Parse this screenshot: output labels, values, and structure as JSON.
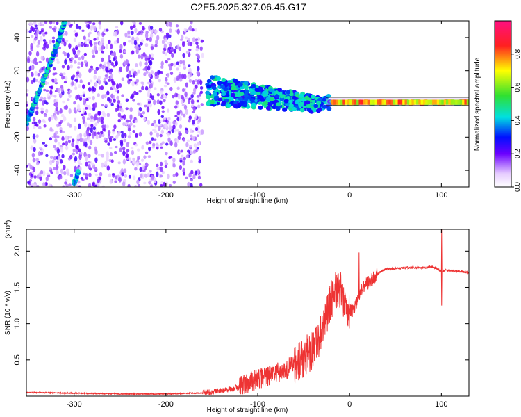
{
  "title": "C2E5.2025.327.06.45.G17",
  "chart_data": [
    {
      "type": "heatmap",
      "xlabel": "Height of straight line (km)",
      "ylabel": "Frequency (Hz)",
      "xlim": [
        -352,
        130
      ],
      "ylim": [
        -50,
        50
      ],
      "x_ticks": [
        -300,
        -200,
        -100,
        0,
        100
      ],
      "y_ticks": [
        -40,
        -20,
        0,
        20,
        40
      ],
      "colorbar": {
        "label": "Normalized spectral amplitude",
        "range": [
          0,
          1
        ],
        "ticks": [
          0.0,
          0.2,
          0.4,
          0.6,
          0.8
        ],
        "tick_labels": [
          "0.0",
          "0.2",
          "0.4",
          "0.6",
          "0.8"
        ]
      },
      "features": {
        "noise_region_x": [
          -352,
          -160
        ],
        "drifting_line_points": [
          [
            -352,
            -12
          ],
          [
            -335,
            12
          ],
          [
            -320,
            33
          ],
          [
            -310,
            50
          ]
        ],
        "lower_line_points": [
          [
            -300,
            -48
          ],
          [
            -295,
            -40
          ]
        ],
        "converging_band_points": [
          [
            -155,
            8
          ],
          [
            -120,
            6
          ],
          [
            -80,
            3
          ],
          [
            -40,
            0
          ],
          [
            0,
            1
          ],
          [
            130,
            1
          ]
        ]
      },
      "grid": false,
      "legend": "none"
    },
    {
      "type": "line",
      "xlabel": "Height of straight line (km)",
      "ylabel": "SNR (10 * v/v)",
      "y_exponent_label": "(x10",
      "y_exponent_sup": "4",
      "y_exponent_close": ")",
      "xlim": [
        -352,
        130
      ],
      "ylim": [
        0,
        2.3
      ],
      "x_ticks": [
        -300,
        -200,
        -100,
        0,
        100
      ],
      "y_ticks": [
        0.5,
        1.0,
        1.5,
        2.0
      ],
      "y_tick_labels": [
        "0.5",
        "1.0",
        "1.5",
        "2.0"
      ],
      "color": "#ee3333",
      "series": [
        {
          "x": [
            -352,
            -300,
            -250,
            -200,
            -170,
            -150,
            -140,
            -130,
            -120,
            -110,
            -100,
            -90,
            -80,
            -70,
            -60,
            -50,
            -40,
            -30,
            -25,
            -20,
            -15,
            -10,
            -5,
            0,
            5,
            10,
            15,
            20,
            25,
            30,
            35,
            40,
            50,
            60,
            70,
            80,
            90,
            95,
            100,
            105,
            110,
            120,
            130
          ],
          "y": [
            0.05,
            0.04,
            0.03,
            0.03,
            0.04,
            0.05,
            0.07,
            0.09,
            0.12,
            0.17,
            0.22,
            0.26,
            0.3,
            0.35,
            0.42,
            0.5,
            0.62,
            0.85,
            1.05,
            1.3,
            1.45,
            1.45,
            1.25,
            1.15,
            1.2,
            1.35,
            1.5,
            1.55,
            1.6,
            1.68,
            1.72,
            1.75,
            1.76,
            1.77,
            1.77,
            1.77,
            1.78,
            1.76,
            1.72,
            1.74,
            1.73,
            1.72,
            1.7
          ]
        }
      ],
      "annotations": [
        {
          "x": 10,
          "y": 1.98,
          "note": "spike"
        },
        {
          "x": 100,
          "y": 2.3,
          "note": "spike"
        },
        {
          "x": 100,
          "y": 1.25,
          "note": "dip"
        }
      ],
      "grid": false,
      "legend": "none"
    }
  ],
  "colors": {
    "heat_low": "#ffffff",
    "heat_purple": "#6b00ff",
    "heat_blue": "#0010ff",
    "heat_cyan": "#00e0e0",
    "heat_green": "#30e030",
    "heat_yellow": "#ffff00",
    "heat_red": "#ff2020",
    "heat_pink": "#ff1080"
  }
}
